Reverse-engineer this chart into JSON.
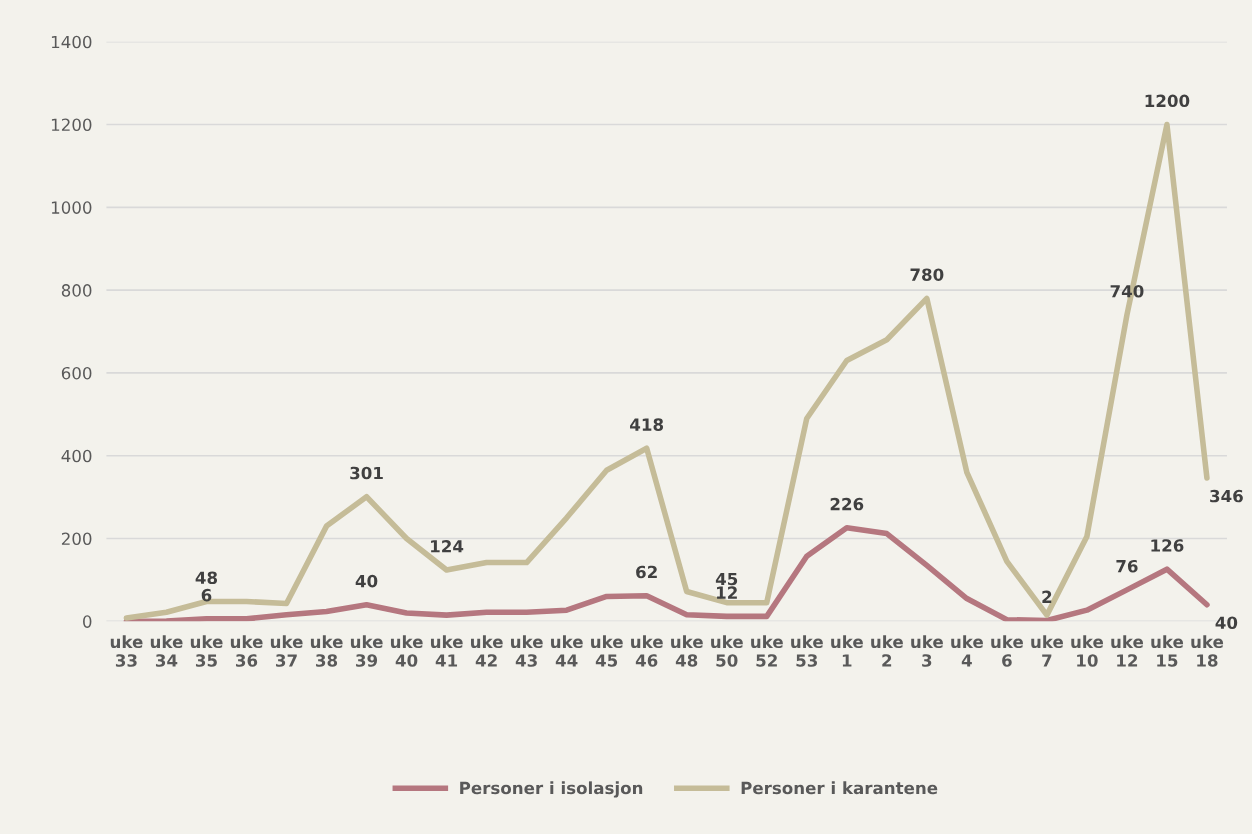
{
  "chart_data": {
    "type": "line",
    "categories": [
      "uke 33",
      "uke 34",
      "uke 35",
      "uke 36",
      "uke 37",
      "uke 38",
      "uke 39",
      "uke 40",
      "uke 41",
      "uke 42",
      "uke 43",
      "uke 44",
      "uke 45",
      "uke 46",
      "uke 48",
      "uke 50",
      "uke 52",
      "uke 53",
      "uke 1",
      "uke 2",
      "uke 3",
      "uke 4",
      "uke 6",
      "uke 7",
      "uke 10",
      "uke 12",
      "uke 15",
      "uke 18"
    ],
    "series": [
      {
        "name": "Personer i isolasjon",
        "color": "#b5777f",
        "values": [
          0,
          1,
          6,
          6,
          16,
          24,
          40,
          20,
          15,
          22,
          22,
          27,
          60,
          62,
          16,
          12,
          12,
          157,
          226,
          212,
          135,
          55,
          4,
          2,
          27,
          76,
          126,
          40
        ],
        "value_labels": [
          null,
          null,
          "6",
          null,
          null,
          null,
          "40",
          null,
          null,
          null,
          null,
          null,
          null,
          "62",
          null,
          "12",
          null,
          null,
          "226",
          null,
          null,
          null,
          null,
          "2",
          null,
          "76",
          "126",
          "40"
        ]
      },
      {
        "name": "Personer i karantene",
        "color": "#c5bc98",
        "values": [
          8,
          22,
          48,
          48,
          43,
          230,
          301,
          200,
          124,
          142,
          142,
          250,
          365,
          418,
          72,
          45,
          45,
          490,
          630,
          680,
          780,
          360,
          145,
          15,
          205,
          740,
          1200,
          346
        ],
        "value_labels": [
          null,
          null,
          "48",
          null,
          null,
          null,
          "301",
          null,
          "124",
          null,
          null,
          null,
          null,
          "418",
          null,
          "45",
          null,
          null,
          null,
          null,
          "780",
          null,
          null,
          null,
          null,
          "740",
          "1200",
          "346"
        ]
      }
    ],
    "ylim": [
      0,
      1400
    ],
    "yticks": [
      0,
      200,
      400,
      600,
      800,
      1000,
      1200,
      1400
    ],
    "grid": "y",
    "legend": "bottom",
    "marker": "none",
    "line_style": "solid"
  }
}
